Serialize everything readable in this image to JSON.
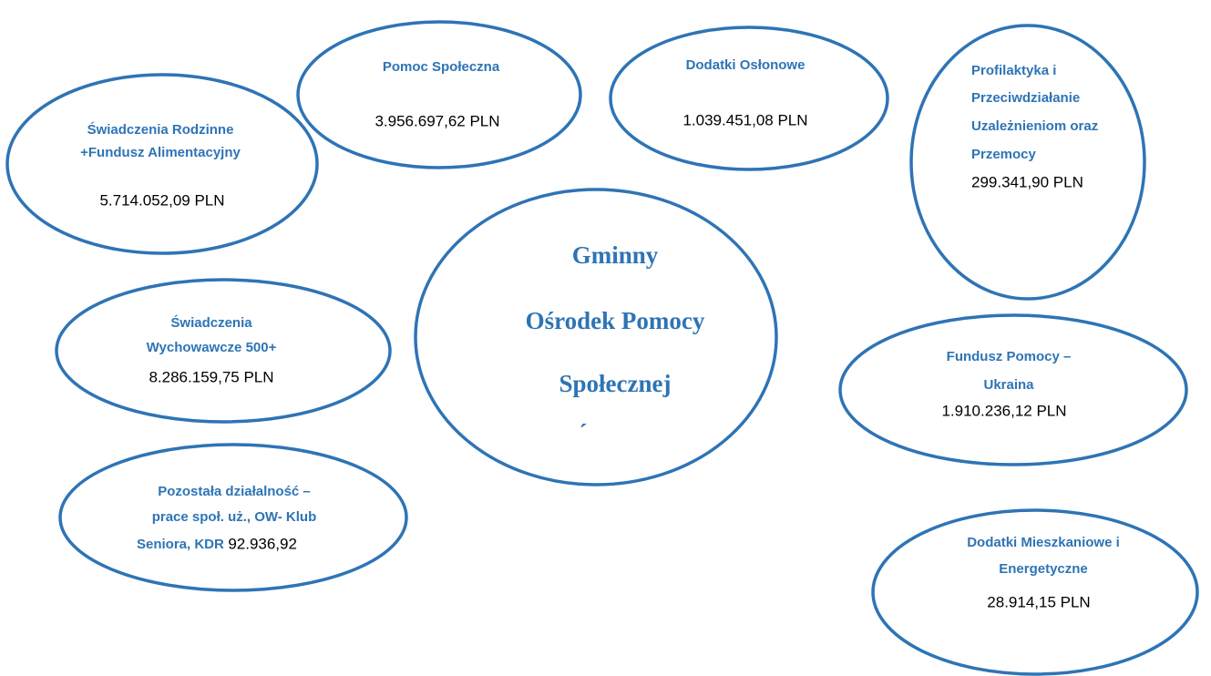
{
  "center": {
    "lines": [
      "Gminny",
      "Ośrodek Pomocy",
      "Społecznej"
    ],
    "mark": "´"
  },
  "nodes": [
    {
      "lines": [
        "Pomoc Społeczna"
      ],
      "amount": "3.956.697,62 PLN"
    },
    {
      "lines": [
        "Dodatki Osłonowe"
      ],
      "amount": "1.039.451,08 PLN"
    },
    {
      "lines": [
        "Profilaktyka i",
        "Przeciwdziałanie",
        "Uzależnieniom oraz",
        "Przemocy"
      ],
      "amount": "299.341,90 PLN"
    },
    {
      "lines": [
        "Świadczenia Rodzinne",
        "+Fundusz Alimentacyjny"
      ],
      "amount": "5.714.052,09 PLN"
    },
    {
      "lines": [
        "Świadczenia",
        "Wychowawcze 500+"
      ],
      "amount": "8.286.159,75 PLN"
    },
    {
      "lines": [
        "Fundusz Pomocy –",
        "Ukraina"
      ],
      "amount": "1.910.236,12 PLN"
    },
    {
      "lines": [
        "Pozostała działalność –",
        "prace społ. uż., OW- Klub",
        "Seniora, KDR"
      ],
      "amount": "92.936,92"
    },
    {
      "lines": [
        "Dodatki Mieszkaniowe i",
        "Energetyczne"
      ],
      "amount": "28.914,15 PLN"
    }
  ]
}
